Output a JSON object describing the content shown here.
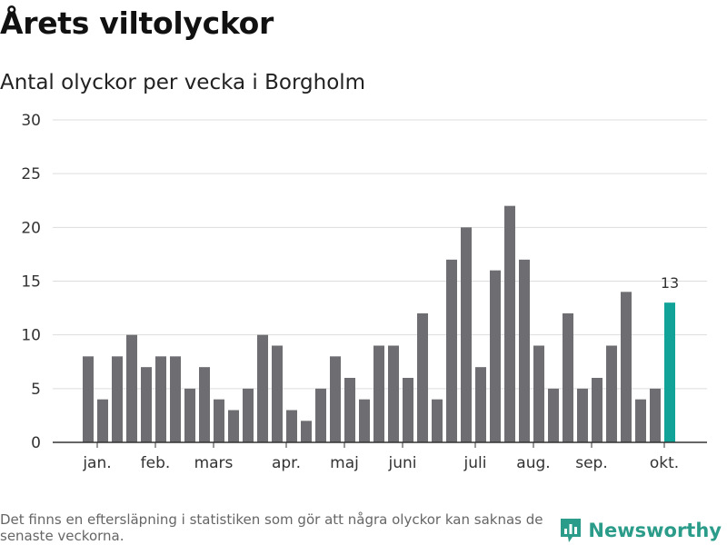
{
  "title": "Årets viltolyckor",
  "subtitle": "Antal olyckor per vecka i Borgholm",
  "footnote": "Det finns en eftersläpning i statistiken som gör att några olyckor kan saknas de senaste veckorna.",
  "brand": {
    "name": "Newsworthy",
    "icon": "bar-chart-speech-bubble-icon"
  },
  "chart_data": {
    "type": "bar",
    "x": [
      1,
      2,
      3,
      4,
      5,
      6,
      7,
      8,
      9,
      10,
      11,
      12,
      13,
      14,
      15,
      16,
      17,
      18,
      19,
      20,
      21,
      22,
      23,
      24,
      25,
      26,
      27,
      28,
      29,
      30,
      31,
      32,
      33,
      34,
      35,
      36,
      37,
      38,
      39,
      40,
      41
    ],
    "values": [
      8,
      4,
      8,
      10,
      7,
      8,
      8,
      5,
      7,
      4,
      3,
      5,
      10,
      9,
      3,
      2,
      5,
      8,
      6,
      4,
      9,
      9,
      6,
      12,
      4,
      17,
      20,
      7,
      16,
      22,
      17,
      9,
      5,
      12,
      5,
      6,
      9,
      14,
      4,
      5,
      13
    ],
    "highlight_index": 40,
    "highlight_label": "13",
    "ylim": [
      0,
      30
    ],
    "yticks": [
      0,
      5,
      10,
      15,
      20,
      25,
      30
    ],
    "month_ticks": [
      {
        "label": "jan.",
        "at": 1.5
      },
      {
        "label": "feb.",
        "at": 5.5
      },
      {
        "label": "mars",
        "at": 9.5
      },
      {
        "label": "apr.",
        "at": 14.5
      },
      {
        "label": "maj",
        "at": 18.5
      },
      {
        "label": "juni",
        "at": 22.5
      },
      {
        "label": "juli",
        "at": 27.5
      },
      {
        "label": "aug.",
        "at": 31.5
      },
      {
        "label": "sep.",
        "at": 35.5
      },
      {
        "label": "okt.",
        "at": 40.5
      }
    ],
    "grid": true,
    "colors": {
      "bar": "#6e6d72",
      "highlight": "#12a398",
      "grid": "#dddddd",
      "axis": "#333333"
    }
  }
}
